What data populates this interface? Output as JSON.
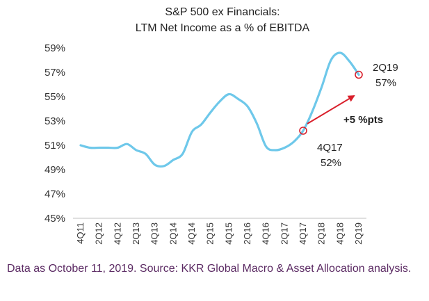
{
  "chart_data": {
    "type": "line",
    "title": "S&P 500 ex Financials:",
    "subtitle": "LTM Net Income as a % of EBITDA",
    "xlabel": "",
    "ylabel": "",
    "ylim": [
      45,
      59
    ],
    "yticks": [
      45,
      47,
      49,
      51,
      53,
      55,
      57,
      59
    ],
    "ytick_labels": [
      "45%",
      "47%",
      "49%",
      "51%",
      "53%",
      "55%",
      "57%",
      "59%"
    ],
    "tick_labels": [
      "4Q11",
      "2Q12",
      "4Q12",
      "2Q13",
      "4Q13",
      "2Q14",
      "4Q14",
      "2Q15",
      "4Q15",
      "2Q16",
      "4Q16",
      "2Q17",
      "4Q17",
      "2Q18",
      "4Q18",
      "2Q19"
    ],
    "categories": [
      "4Q11",
      "1Q12",
      "2Q12",
      "3Q12",
      "4Q12",
      "1Q13",
      "2Q13",
      "3Q13",
      "4Q13",
      "1Q14",
      "2Q14",
      "3Q14",
      "4Q14",
      "1Q15",
      "2Q15",
      "3Q15",
      "4Q15",
      "1Q16",
      "2Q16",
      "3Q16",
      "4Q16",
      "1Q17",
      "2Q17",
      "3Q17",
      "4Q17",
      "1Q18",
      "2Q18",
      "3Q18",
      "4Q18",
      "1Q19",
      "2Q19"
    ],
    "series": [
      {
        "name": "LTM Net Income as a % of EBITDA",
        "color": "#6ec8ea",
        "values": [
          51.0,
          50.8,
          50.8,
          50.8,
          50.8,
          51.1,
          50.6,
          50.3,
          49.4,
          49.3,
          49.8,
          50.3,
          52.1,
          52.7,
          53.7,
          54.6,
          55.2,
          54.8,
          54.2,
          52.8,
          50.9,
          50.6,
          50.8,
          51.3,
          52.2,
          53.8,
          55.8,
          58.0,
          58.6,
          57.9,
          56.8
        ]
      }
    ],
    "markers": [
      {
        "category": "4Q17",
        "value": 52.2,
        "label_top": "4Q17",
        "label_bottom": "52%",
        "color": "#d9202c"
      },
      {
        "category": "2Q19",
        "value": 56.8,
        "label_top": "2Q19",
        "label_bottom": "57%",
        "color": "#d9202c"
      }
    ],
    "arrow_annotation": {
      "label": "+5 %pts",
      "color": "#d9202c"
    }
  },
  "footer": {
    "source": "Data as October 11, 2019. Source: KKR Global Macro & Asset Allocation analysis."
  }
}
